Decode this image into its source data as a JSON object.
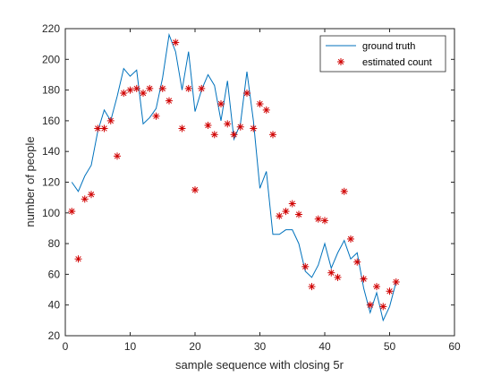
{
  "chart_data": {
    "type": "line",
    "title": "",
    "xlabel": "sample sequence with closing 5r",
    "ylabel": "number of people",
    "xlim": [
      0,
      60
    ],
    "ylim": [
      20,
      220
    ],
    "xticks": [
      0,
      10,
      20,
      30,
      40,
      50,
      60
    ],
    "yticks": [
      20,
      40,
      60,
      80,
      100,
      120,
      140,
      160,
      180,
      200,
      220
    ],
    "grid": false,
    "legend_position": "top-right",
    "series": [
      {
        "name": "ground truth",
        "style": "line",
        "color": "#0072BD",
        "x": [
          1,
          2,
          3,
          4,
          5,
          6,
          7,
          8,
          9,
          10,
          11,
          12,
          13,
          14,
          15,
          16,
          17,
          18,
          19,
          20,
          21,
          22,
          23,
          24,
          25,
          26,
          27,
          28,
          29,
          30,
          31,
          32,
          33,
          34,
          35,
          36,
          37,
          38,
          39,
          40,
          41,
          42,
          43,
          44,
          45,
          46,
          47,
          48,
          49,
          50,
          51
        ],
        "y": [
          120,
          114,
          124,
          131,
          153,
          167,
          160,
          176,
          194,
          189,
          193,
          158,
          162,
          168,
          188,
          216,
          205,
          180,
          205,
          166,
          180,
          190,
          183,
          160,
          186,
          148,
          158,
          192,
          160,
          116,
          127,
          86,
          86,
          89,
          89,
          80,
          62,
          58,
          66,
          80,
          64,
          74,
          82,
          70,
          74,
          51,
          35,
          48,
          30,
          39,
          55
        ]
      },
      {
        "name": "estimated count",
        "style": "marker",
        "marker": "asterisk",
        "color": "#D00000",
        "x": [
          1,
          2,
          3,
          4,
          5,
          6,
          7,
          8,
          9,
          10,
          11,
          12,
          13,
          14,
          15,
          16,
          17,
          18,
          19,
          20,
          21,
          22,
          23,
          24,
          25,
          26,
          27,
          28,
          29,
          30,
          31,
          32,
          33,
          34,
          35,
          36,
          37,
          38,
          39,
          40,
          41,
          42,
          43,
          44,
          45,
          46,
          47,
          48,
          49,
          50,
          51
        ],
        "y": [
          101,
          70,
          109,
          112,
          155,
          155,
          160,
          137,
          178,
          180,
          181,
          178,
          181,
          163,
          181,
          173,
          211,
          155,
          181,
          115,
          181,
          157,
          151,
          171,
          158,
          151,
          156,
          178,
          155,
          171,
          167,
          151,
          98,
          101,
          106,
          99,
          65,
          52,
          96,
          95,
          61,
          58,
          114,
          83,
          68,
          57,
          40,
          52,
          39,
          49,
          55
        ]
      }
    ]
  }
}
